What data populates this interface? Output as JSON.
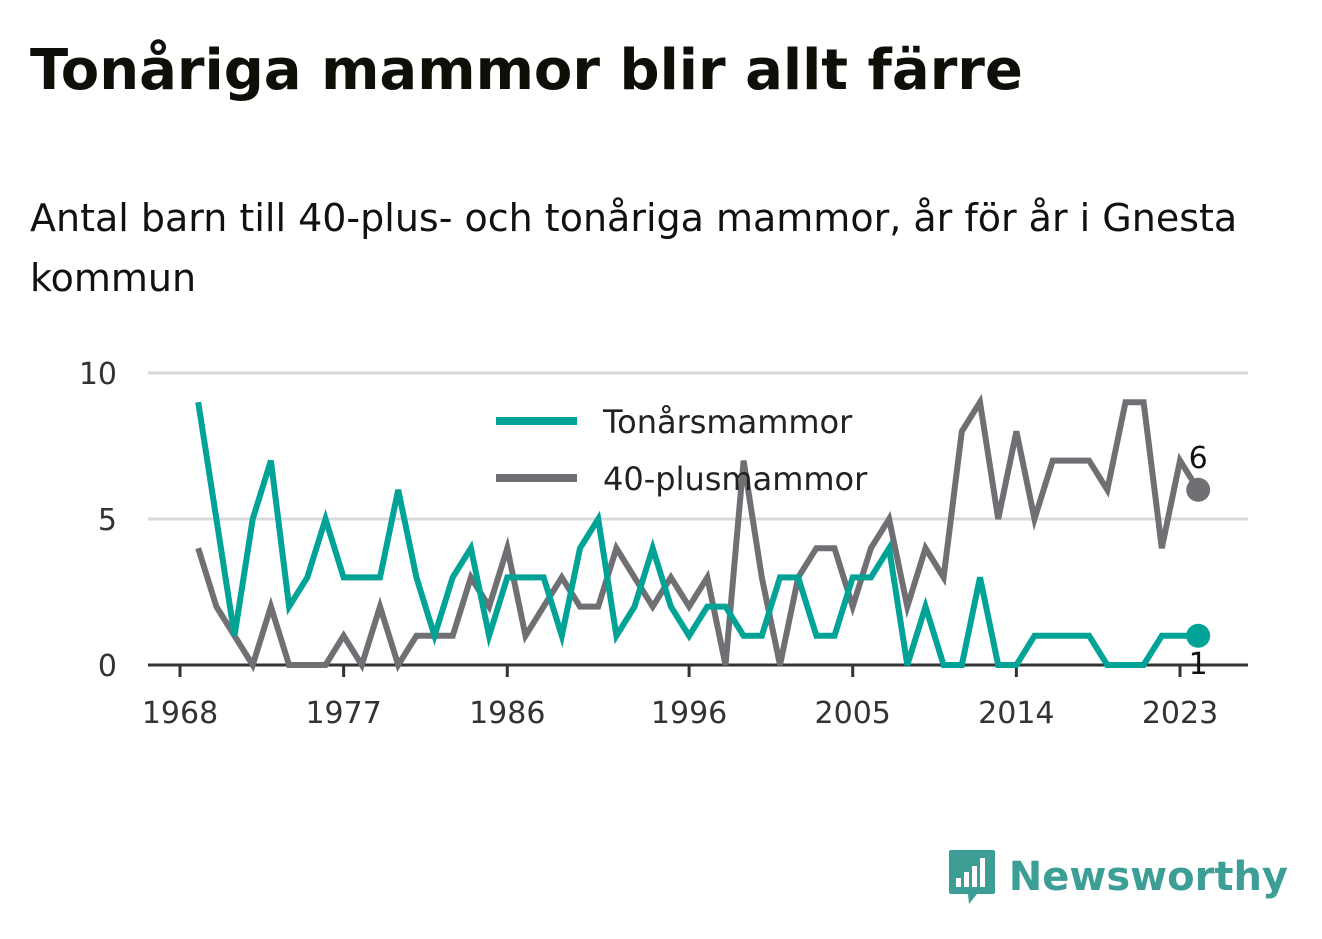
{
  "title": "Tonåriga mammor blir allt färre",
  "subtitle": "Antal barn till 40-plus- och tonåriga mammor, år för år i Gnesta kommun",
  "brand": {
    "name": "Newsworthy",
    "icon": "newsworthy-logo-icon",
    "color": "#3d9e96"
  },
  "chart_data": {
    "type": "line",
    "x_tick_labels": [
      "1968",
      "1977",
      "1986",
      "1996",
      "2005",
      "2014",
      "2023"
    ],
    "y_ticks": [
      0,
      5,
      10
    ],
    "ylim": [
      0,
      10
    ],
    "xlim": [
      1968,
      2024
    ],
    "grid": true,
    "legend_position": "top-center",
    "x": [
      1969,
      1970,
      1971,
      1972,
      1973,
      1974,
      1975,
      1976,
      1977,
      1978,
      1979,
      1980,
      1981,
      1982,
      1983,
      1984,
      1985,
      1986,
      1987,
      1988,
      1989,
      1990,
      1991,
      1992,
      1993,
      1994,
      1995,
      1996,
      1997,
      1998,
      1999,
      2000,
      2001,
      2002,
      2003,
      2004,
      2005,
      2006,
      2007,
      2008,
      2009,
      2010,
      2011,
      2012,
      2013,
      2014,
      2015,
      2016,
      2017,
      2018,
      2019,
      2020,
      2021,
      2022,
      2023,
      2024
    ],
    "series": [
      {
        "name": "Tonårsmammor",
        "color": "#00a396",
        "values": [
          9,
          5,
          1,
          5,
          7,
          2,
          3,
          5,
          3,
          3,
          3,
          6,
          3,
          1,
          3,
          4,
          1,
          3,
          3,
          3,
          1,
          4,
          5,
          1,
          2,
          4,
          2,
          1,
          2,
          2,
          1,
          1,
          3,
          3,
          1,
          1,
          3,
          3,
          4,
          0,
          2,
          0,
          0,
          3,
          0,
          0,
          1,
          1,
          1,
          1,
          0,
          0,
          0,
          1,
          1,
          1
        ],
        "end_label": "1"
      },
      {
        "name": "40-plusmammor",
        "color": "#707074",
        "values": [
          4,
          2,
          1,
          0,
          2,
          0,
          0,
          0,
          1,
          0,
          2,
          0,
          1,
          1,
          1,
          3,
          2,
          4,
          1,
          2,
          3,
          2,
          2,
          4,
          3,
          2,
          3,
          2,
          3,
          0,
          7,
          3,
          0,
          3,
          4,
          4,
          2,
          4,
          5,
          2,
          4,
          3,
          8,
          9,
          5,
          8,
          5,
          7,
          7,
          7,
          6,
          9,
          9,
          4,
          7,
          6
        ],
        "end_label": "6"
      }
    ]
  }
}
